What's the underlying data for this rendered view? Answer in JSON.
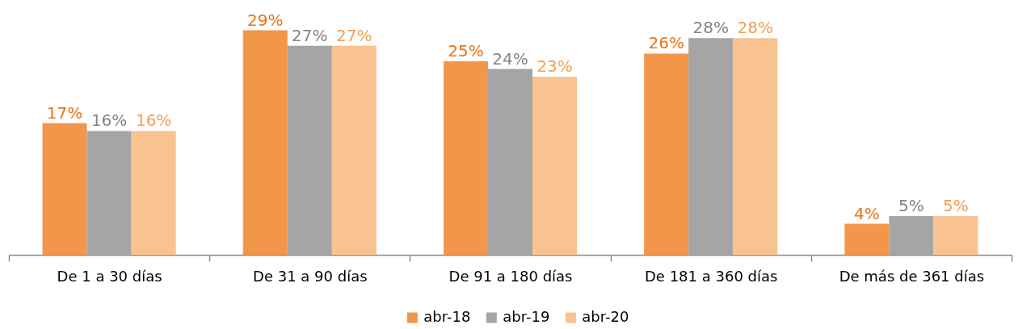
{
  "chart_data": {
    "type": "bar",
    "categories": [
      "De 1 a 30 días",
      "De 31 a 90 días",
      "De 91 a 180 días",
      "De 181 a 360 días",
      "De más de 361 días"
    ],
    "series": [
      {
        "name": "abr-18",
        "color": "#f2974a",
        "values": [
          17,
          29,
          25,
          26,
          4
        ],
        "value_labels": [
          "17%",
          "29%",
          "25%",
          "26%",
          "4%"
        ]
      },
      {
        "name": "abr-19",
        "color": "#a5a5a5",
        "values": [
          16,
          27,
          24,
          28,
          5
        ],
        "value_labels": [
          "16%",
          "27%",
          "24%",
          "28%",
          "5%"
        ]
      },
      {
        "name": "abr-20",
        "color": "#f8c291",
        "values": [
          16,
          27,
          23,
          28,
          5
        ],
        "value_labels": [
          "16%",
          "27%",
          "23%",
          "28%",
          "5%"
        ]
      }
    ],
    "legend": "bottom"
  }
}
